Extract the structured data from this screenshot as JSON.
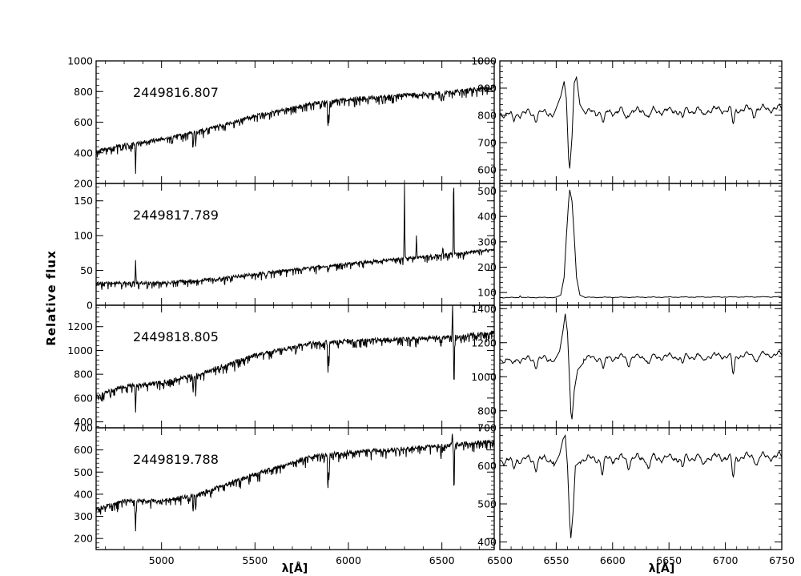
{
  "figure": {
    "ylabel": "Relative flux",
    "xlabel_left": "λ[Å]",
    "xlabel_right": "λ[Å]"
  },
  "chart_data": [
    {
      "type": "line",
      "panel": "left-1",
      "annotation": "2449816.807",
      "xlim": [
        4650,
        6780
      ],
      "ylim": [
        200,
        1000
      ],
      "xticks": [],
      "yticks": [
        200,
        400,
        600,
        800,
        1000
      ],
      "series": [
        {
          "continuum": [
            [
              4650,
              410
            ],
            [
              4800,
              450
            ],
            [
              5000,
              490
            ],
            [
              5200,
              540
            ],
            [
              5500,
              640
            ],
            [
              5800,
              720
            ],
            [
              6000,
              750
            ],
            [
              6200,
              770
            ],
            [
              6500,
              790
            ],
            [
              6780,
              830
            ]
          ],
          "absorption": [
            [
              4861,
              150
            ],
            [
              5169,
              90
            ],
            [
              5183,
              90
            ],
            [
              5890,
              170
            ],
            [
              5896,
              150
            ],
            [
              6495,
              60
            ],
            [
              6563,
              170
            ]
          ],
          "emission": [
            [
              6563,
              160
            ]
          ],
          "noise": 40
        }
      ]
    },
    {
      "type": "line",
      "panel": "left-2",
      "annotation": "2449817.789",
      "xlim": [
        4650,
        6780
      ],
      "ylim": [
        0,
        175
      ],
      "xticks": [],
      "yticks": [
        0,
        50,
        100,
        150
      ],
      "series": [
        {
          "continuum": [
            [
              4650,
              32
            ],
            [
              5000,
              32
            ],
            [
              5300,
              38
            ],
            [
              5600,
              48
            ],
            [
              5900,
              57
            ],
            [
              6200,
              65
            ],
            [
              6500,
              72
            ],
            [
              6780,
              80
            ]
          ],
          "absorption": [
            [
              5890,
              8
            ],
            [
              5896,
              8
            ]
          ],
          "emission": [
            [
              4861,
              35
            ],
            [
              6300,
              105
            ],
            [
              6364,
              30
            ],
            [
              6563,
              115
            ],
            [
              6505,
              15
            ]
          ],
          "noise": 7
        }
      ]
    },
    {
      "type": "line",
      "panel": "left-3",
      "annotation": "2449818.805",
      "xlim": [
        4650,
        6780
      ],
      "ylim": [
        350,
        1380
      ],
      "xticks": [],
      "yticks": [
        400,
        600,
        800,
        1000,
        1200
      ],
      "series": [
        {
          "continuum": [
            [
              4650,
              620
            ],
            [
              4800,
              700
            ],
            [
              5000,
              730
            ],
            [
              5200,
              800
            ],
            [
              5500,
              960
            ],
            [
              5800,
              1060
            ],
            [
              6000,
              1080
            ],
            [
              6200,
              1090
            ],
            [
              6500,
              1110
            ],
            [
              6780,
              1150
            ]
          ],
          "absorption": [
            [
              4861,
              220
            ],
            [
              5169,
              150
            ],
            [
              5183,
              150
            ],
            [
              5890,
              240
            ],
            [
              5896,
              200
            ],
            [
              6495,
              100
            ],
            [
              6565,
              400
            ]
          ],
          "emission": [
            [
              6557,
              260
            ]
          ],
          "noise": 55
        }
      ]
    },
    {
      "type": "line",
      "panel": "left-4",
      "annotation": "2449819.788",
      "xlim": [
        4650,
        6780
      ],
      "ylim": [
        150,
        700
      ],
      "xticks": [
        5000,
        5500,
        6000,
        6500
      ],
      "yticks": [
        200,
        300,
        400,
        500,
        600,
        700
      ],
      "series": [
        {
          "continuum": [
            [
              4650,
              330
            ],
            [
              4800,
              370
            ],
            [
              5000,
              370
            ],
            [
              5200,
              400
            ],
            [
              5500,
              490
            ],
            [
              5800,
              570
            ],
            [
              6000,
              590
            ],
            [
              6200,
              600
            ],
            [
              6500,
              620
            ],
            [
              6780,
              640
            ]
          ],
          "absorption": [
            [
              4861,
              140
            ],
            [
              5169,
              80
            ],
            [
              5183,
              80
            ],
            [
              5890,
              160
            ],
            [
              5896,
              130
            ],
            [
              6495,
              60
            ],
            [
              6565,
              220
            ]
          ],
          "emission": [
            [
              6556,
              60
            ]
          ],
          "noise": 30
        }
      ]
    },
    {
      "type": "line",
      "panel": "right-1",
      "xlim": [
        6500,
        6750
      ],
      "ylim": [
        550,
        1000
      ],
      "xticks": [],
      "yticks": [
        600,
        700,
        800,
        900,
        1000
      ],
      "series": [
        {
          "continuum": [
            [
              6500,
              805
            ],
            [
              6750,
              825
            ]
          ],
          "profile": [
            [
              6548,
              805
            ],
            [
              6554,
              870
            ],
            [
              6557,
              925
            ],
            [
              6559,
              860
            ],
            [
              6561,
              640
            ],
            [
              6562,
              605
            ],
            [
              6564,
              720
            ],
            [
              6566,
              920
            ],
            [
              6568,
              940
            ],
            [
              6571,
              840
            ],
            [
              6576,
              805
            ]
          ],
          "dips": [
            [
              6512,
              30
            ],
            [
              6532,
              20
            ],
            [
              6592,
              45
            ],
            [
              6612,
              25
            ],
            [
              6632,
              25
            ],
            [
              6662,
              30
            ],
            [
              6680,
              25
            ],
            [
              6707,
              55
            ],
            [
              6725,
              20
            ]
          ]
        }
      ]
    },
    {
      "type": "line",
      "panel": "right-2",
      "xlim": [
        6500,
        6750
      ],
      "ylim": [
        50,
        530
      ],
      "xticks": [],
      "yticks": [
        100,
        200,
        300,
        400,
        500
      ],
      "series": [
        {
          "continuum": [
            [
              6500,
              80
            ],
            [
              6750,
              83
            ]
          ],
          "profile": [
            [
              6550,
              82
            ],
            [
              6554,
              90
            ],
            [
              6557,
              160
            ],
            [
              6559,
              320
            ],
            [
              6561,
              460
            ],
            [
              6562,
              505
            ],
            [
              6564,
              460
            ],
            [
              6566,
              320
            ],
            [
              6568,
              160
            ],
            [
              6571,
              90
            ],
            [
              6575,
              82
            ]
          ],
          "dips": [],
          "bumps": [
            [
              6518,
              8
            ]
          ]
        }
      ]
    },
    {
      "type": "line",
      "panel": "right-3",
      "xlim": [
        6500,
        6750
      ],
      "ylim": [
        700,
        1420
      ],
      "xticks": [],
      "yticks": [
        800,
        1000,
        1200,
        1400
      ],
      "series": [
        {
          "continuum": [
            [
              6500,
              1100
            ],
            [
              6750,
              1130
            ]
          ],
          "profile": [
            [
              6548,
              1090
            ],
            [
              6553,
              1150
            ],
            [
              6556,
              1270
            ],
            [
              6558,
              1370
            ],
            [
              6560,
              1260
            ],
            [
              6562,
              950
            ],
            [
              6563,
              790
            ],
            [
              6564,
              750
            ],
            [
              6566,
              920
            ],
            [
              6569,
              1040
            ],
            [
              6574,
              1080
            ]
          ],
          "dips": [
            [
              6511,
              40
            ],
            [
              6532,
              40
            ],
            [
              6592,
              70
            ],
            [
              6614,
              40
            ],
            [
              6632,
              45
            ],
            [
              6662,
              50
            ],
            [
              6680,
              35
            ],
            [
              6707,
              110
            ],
            [
              6728,
              35
            ]
          ]
        }
      ]
    },
    {
      "type": "line",
      "panel": "right-4",
      "xlim": [
        6500,
        6750
      ],
      "ylim": [
        380,
        700
      ],
      "xticks": [
        6500,
        6550,
        6600,
        6650,
        6700,
        6750
      ],
      "yticks": [
        400,
        500,
        600,
        700
      ],
      "series": [
        {
          "continuum": [
            [
              6500,
              615
            ],
            [
              6750,
              625
            ]
          ],
          "profile": [
            [
              6548,
              600
            ],
            [
              6553,
              630
            ],
            [
              6556,
              670
            ],
            [
              6558,
              680
            ],
            [
              6560,
              600
            ],
            [
              6562,
              450
            ],
            [
              6563,
              410
            ],
            [
              6565,
              480
            ],
            [
              6567,
              600
            ],
            [
              6571,
              610
            ]
          ],
          "dips": [
            [
              6512,
              25
            ],
            [
              6532,
              20
            ],
            [
              6591,
              40
            ],
            [
              6614,
              20
            ],
            [
              6632,
              30
            ],
            [
              6662,
              30
            ],
            [
              6680,
              25
            ],
            [
              6707,
              55
            ],
            [
              6728,
              20
            ]
          ]
        }
      ]
    }
  ]
}
